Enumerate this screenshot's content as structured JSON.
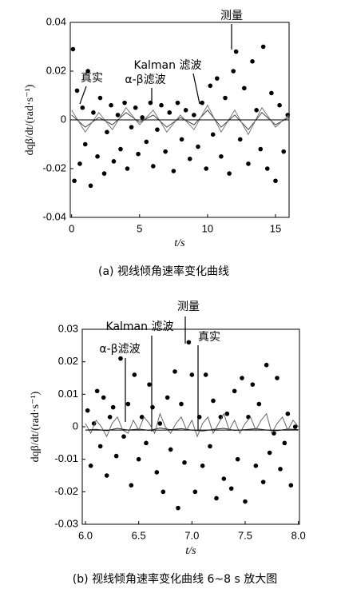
{
  "chart_data": [
    {
      "type": "scatter",
      "caption": "(a) 视线倾角速率变化曲线",
      "xlabel": "t/s",
      "ylabel": "dqβ/dt/(rad·s⁻¹)",
      "xlim": [
        -0.1,
        16
      ],
      "ylim": [
        -0.04,
        0.04
      ],
      "xticks": [
        0,
        5,
        10,
        15
      ],
      "yticks": [
        -0.04,
        -0.02,
        0,
        0.02,
        0.04
      ],
      "series": [
        {
          "name": "测量",
          "color": "#000000",
          "style": "dots",
          "x": [
            0.1,
            0.2,
            0.4,
            0.6,
            0.8,
            1.0,
            1.2,
            1.4,
            1.6,
            1.9,
            2.1,
            2.4,
            2.6,
            2.9,
            3.1,
            3.4,
            3.6,
            3.9,
            4.1,
            4.4,
            4.7,
            4.9,
            5.2,
            5.5,
            5.8,
            6.0,
            6.3,
            6.6,
            6.9,
            7.2,
            7.5,
            7.8,
            8.1,
            8.4,
            8.7,
            9.0,
            9.3,
            9.6,
            9.9,
            10.2,
            10.4,
            10.7,
            11.0,
            11.3,
            11.6,
            11.9,
            12.1,
            12.4,
            12.7,
            13.0,
            13.3,
            13.6,
            13.9,
            14.1,
            14.4,
            14.7,
            15.0,
            15.3,
            15.6,
            15.9
          ],
          "values": [
            0.029,
            -0.025,
            0.012,
            -0.018,
            0.005,
            -0.01,
            0.02,
            -0.027,
            0.003,
            -0.015,
            0.009,
            -0.022,
            -0.005,
            0.006,
            -0.017,
            0.002,
            -0.012,
            0.007,
            -0.02,
            -0.003,
            0.005,
            -0.014,
            0.001,
            -0.009,
            0.007,
            -0.019,
            -0.004,
            0.006,
            -0.013,
            0.003,
            -0.021,
            0.007,
            -0.008,
            0.004,
            -0.016,
            0.002,
            -0.011,
            0.007,
            -0.02,
            0.014,
            -0.006,
            0.017,
            -0.015,
            0.009,
            -0.022,
            0.02,
            0.028,
            -0.008,
            0.013,
            -0.018,
            0.024,
            0.004,
            -0.012,
            0.03,
            -0.02,
            0.011,
            -0.025,
            0.006,
            -0.013,
            0.002
          ]
        },
        {
          "name": "Kalman 滤波",
          "color": "#444444",
          "style": "line",
          "x": [
            0,
            1,
            2,
            3,
            4,
            5,
            6,
            7,
            8,
            9,
            10,
            11,
            12,
            13,
            14,
            15,
            16
          ],
          "values": [
            0.002,
            -0.003,
            0.001,
            -0.002,
            0.003,
            -0.001,
            0.002,
            -0.003,
            0.001,
            -0.002,
            0.004,
            -0.003,
            0.002,
            -0.004,
            0.003,
            -0.002,
            0.001
          ]
        },
        {
          "name": "α-β滤波",
          "color": "#777777",
          "style": "line",
          "x": [
            0,
            1,
            2,
            3,
            4,
            5,
            6,
            7,
            8,
            9,
            10,
            11,
            12,
            13,
            14,
            15,
            16
          ],
          "values": [
            0.004,
            -0.005,
            0.003,
            -0.004,
            0.005,
            -0.002,
            0.004,
            -0.005,
            0.002,
            -0.004,
            0.006,
            -0.005,
            0.004,
            -0.006,
            0.005,
            -0.003,
            0.002
          ]
        },
        {
          "name": "真实",
          "color": "#000000",
          "style": "line",
          "x": [
            0,
            16
          ],
          "values": [
            0,
            0
          ]
        }
      ]
    },
    {
      "type": "scatter",
      "caption": "(b) 视线倾角速率变化曲线 6~8 s 放大图",
      "xlabel": "t/s",
      "ylabel": "dqβ/dt/(rad·s⁻¹)",
      "xlim": [
        5.97,
        8.01
      ],
      "ylim": [
        -0.03,
        0.03
      ],
      "xticks": [
        {
          "value": 6,
          "label": "6.0"
        },
        {
          "value": 6.5,
          "label": "6.5"
        },
        {
          "value": 7,
          "label": "7.0"
        },
        {
          "value": 7.5,
          "label": "7.5"
        },
        {
          "value": 8,
          "label": "8.0"
        }
      ],
      "yticks": [
        -0.03,
        -0.02,
        -0.01,
        0,
        0.01,
        0.02,
        0.03
      ],
      "series": [
        {
          "name": "测量",
          "color": "#000000",
          "style": "dots",
          "x": [
            6.02,
            6.05,
            6.08,
            6.11,
            6.14,
            6.17,
            6.2,
            6.23,
            6.26,
            6.29,
            6.33,
            6.36,
            6.4,
            6.43,
            6.46,
            6.5,
            6.53,
            6.57,
            6.6,
            6.63,
            6.67,
            6.7,
            6.73,
            6.77,
            6.8,
            6.84,
            6.87,
            6.9,
            6.93,
            6.97,
            7.0,
            7.03,
            7.07,
            7.1,
            7.13,
            7.17,
            7.2,
            7.23,
            7.27,
            7.3,
            7.33,
            7.37,
            7.4,
            7.43,
            7.47,
            7.5,
            7.53,
            7.57,
            7.6,
            7.63,
            7.67,
            7.7,
            7.73,
            7.77,
            7.8,
            7.83,
            7.87,
            7.9,
            7.93,
            7.97
          ],
          "values": [
            0.005,
            -0.012,
            0.001,
            0.011,
            -0.006,
            0.009,
            -0.015,
            0.003,
            0.006,
            -0.009,
            0.021,
            -0.003,
            0.007,
            -0.018,
            0.016,
            -0.01,
            0.003,
            -0.005,
            0.013,
            0.006,
            -0.014,
            0.001,
            -0.02,
            0.009,
            -0.007,
            0.017,
            -0.025,
            0.007,
            -0.011,
            0.026,
            0.016,
            -0.02,
            0.003,
            -0.012,
            0.016,
            -0.006,
            0.008,
            -0.022,
            0.003,
            -0.016,
            0.004,
            -0.019,
            0.011,
            -0.01,
            0.015,
            -0.023,
            0.003,
            0.013,
            -0.012,
            0.007,
            -0.017,
            0.019,
            -0.008,
            -0.002,
            0.015,
            -0.013,
            -0.005,
            0.004,
            -0.018,
            0
          ]
        },
        {
          "name": "Kalman 滤波",
          "color": "#222222",
          "style": "line",
          "x": [
            6.0,
            6.1,
            6.2,
            6.3,
            6.4,
            6.5,
            6.6,
            6.7,
            6.8,
            6.9,
            7.0,
            7.1,
            7.2,
            7.3,
            7.4,
            7.5,
            7.6,
            7.7,
            7.8,
            7.9,
            8.0
          ],
          "values": [
            -0.001,
            -0.0008,
            -0.0012,
            -0.0005,
            -0.001,
            -0.0007,
            -0.0011,
            -0.0004,
            -0.0009,
            -0.0006,
            -0.001,
            -0.0013,
            -0.0008,
            -0.0005,
            -0.0011,
            -0.0009,
            -0.0006,
            -0.001,
            -0.0012,
            -0.0007,
            -0.0009
          ]
        },
        {
          "name": "α-β滤波",
          "color": "#666666",
          "style": "line",
          "x": [
            6.0,
            6.05,
            6.1,
            6.15,
            6.2,
            6.25,
            6.3,
            6.35,
            6.4,
            6.45,
            6.5,
            6.55,
            6.6,
            6.65,
            6.7,
            6.75,
            6.8,
            6.85,
            6.9,
            6.95,
            7.0,
            7.05,
            7.1,
            7.15,
            7.2,
            7.25,
            7.3,
            7.35,
            7.4,
            7.45,
            7.5,
            7.55,
            7.6,
            7.65,
            7.7,
            7.75,
            7.8,
            7.85,
            7.9,
            7.95,
            8.0
          ],
          "values": [
            0.001,
            -0.002,
            0.002,
            0,
            -0.003,
            0.001,
            0.003,
            -0.001,
            -0.002,
            0.002,
            -0.001,
            0.003,
            0.001,
            -0.002,
            0.004,
            0,
            -0.002,
            0.001,
            0.003,
            -0.001,
            0.002,
            -0.003,
            0.001,
            0.003,
            -0.002,
            0.001,
            0.004,
            -0.001,
            0.002,
            -0.002,
            0.001,
            0.003,
            -0.001,
            0.002,
            0.004,
            -0.002,
            0.001,
            0.003,
            -0.001,
            0.002,
            0
          ]
        },
        {
          "name": "真实",
          "color": "#000000",
          "style": "line",
          "x": [
            6.0,
            8.0
          ],
          "values": [
            -0.001,
            -0.001
          ]
        }
      ]
    }
  ]
}
